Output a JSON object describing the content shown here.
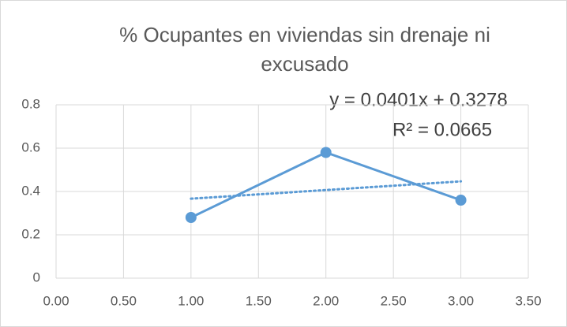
{
  "chart_data": {
    "type": "line",
    "title": [
      "% Ocupantes en viviendas sin drenaje ni",
      "excusado"
    ],
    "annotations": [
      "y = 0.0401x + 0.3278",
      "R² = 0.0665"
    ],
    "x": [
      1,
      2,
      3
    ],
    "series": [
      {
        "color": "#5b9bd5",
        "values": [
          0.28,
          0.58,
          0.36
        ]
      }
    ],
    "trendline": "linear",
    "xlim": [
      0,
      3.5
    ],
    "xticks": [
      {
        "value": 0,
        "label": "0.00"
      },
      {
        "value": 0.5,
        "label": "0.50"
      },
      {
        "value": 1,
        "label": "1.00"
      },
      {
        "value": 1.5,
        "label": "1.50"
      },
      {
        "value": 2,
        "label": "2.00"
      },
      {
        "value": 2.5,
        "label": "2.50"
      },
      {
        "value": 3,
        "label": "3.00"
      },
      {
        "value": 3.5,
        "label": "3.50"
      }
    ],
    "ylim": [
      0,
      0.8
    ],
    "yticks": [
      0,
      0.2,
      0.4,
      0.6,
      0.8
    ],
    "grid": true
  }
}
